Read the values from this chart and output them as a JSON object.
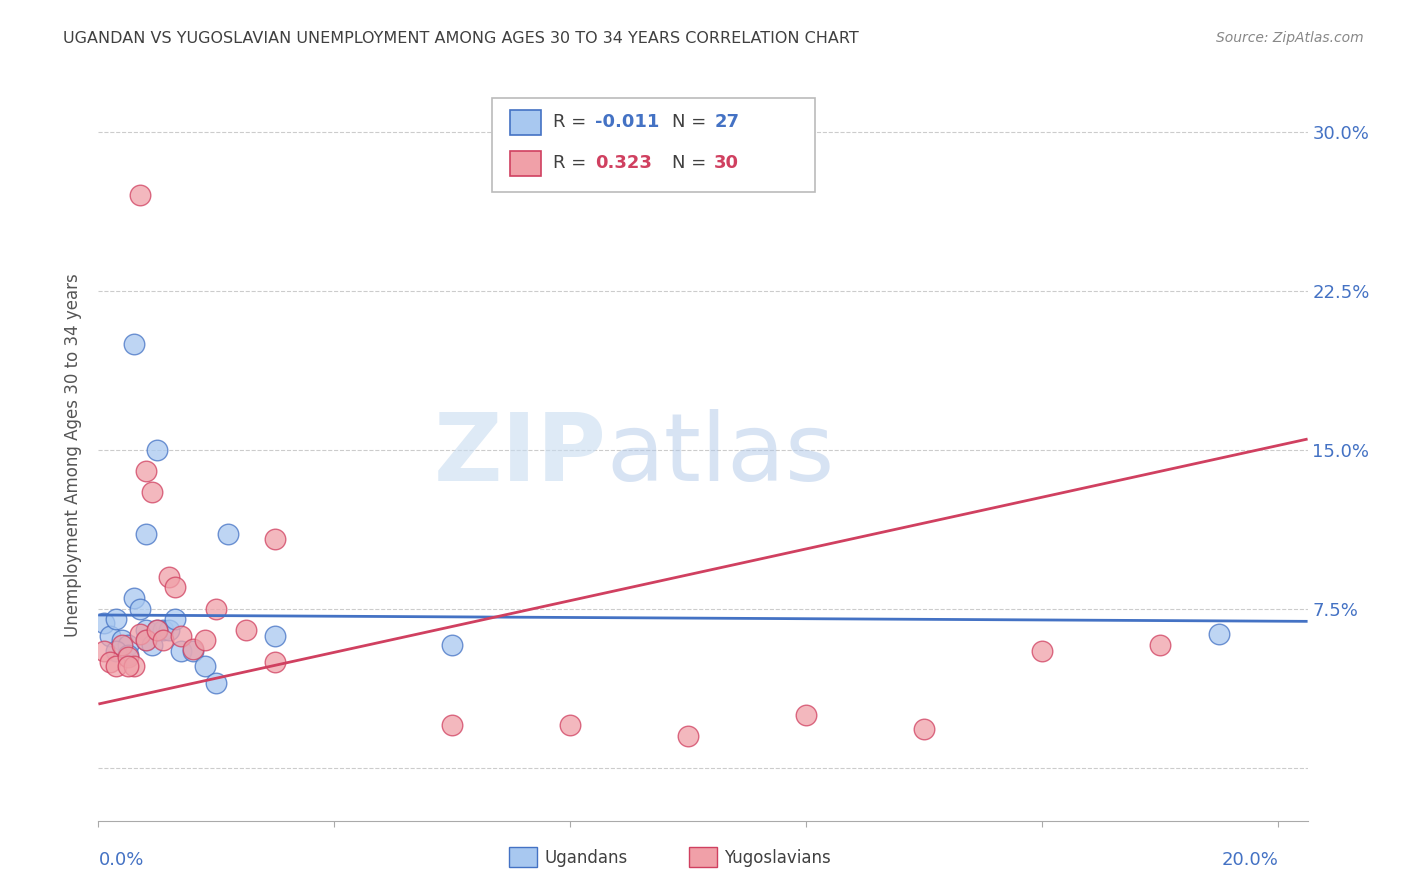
{
  "title": "UGANDAN VS YUGOSLAVIAN UNEMPLOYMENT AMONG AGES 30 TO 34 YEARS CORRELATION CHART",
  "source": "Source: ZipAtlas.com",
  "ylabel": "Unemployment Among Ages 30 to 34 years",
  "watermark_zip": "ZIP",
  "watermark_atlas": "atlas",
  "ugandan_label": "Ugandans",
  "yugoslavian_label": "Yugoslavians",
  "ugandan_R": "-0.011",
  "ugandan_N": "27",
  "yugoslavian_R": "0.323",
  "yugoslavian_N": "30",
  "ugandan_color": "#A8C8F0",
  "yugoslavian_color": "#F0A0A8",
  "ugandan_line_color": "#4472C4",
  "yugoslavian_line_color": "#D04060",
  "background_color": "#FFFFFF",
  "grid_color": "#CCCCCC",
  "title_color": "#404040",
  "xlim": [
    0.0,
    0.205
  ],
  "ylim": [
    -0.025,
    0.32
  ],
  "yticks": [
    0.0,
    0.075,
    0.15,
    0.225,
    0.3
  ],
  "ytick_labels": [
    "",
    "7.5%",
    "15.0%",
    "22.5%",
    "30.0%"
  ],
  "ugandan_x": [
    0.001,
    0.002,
    0.003,
    0.004,
    0.005,
    0.006,
    0.006,
    0.007,
    0.008,
    0.008,
    0.009,
    0.01,
    0.011,
    0.012,
    0.013,
    0.014,
    0.016,
    0.018,
    0.02,
    0.022,
    0.008,
    0.01,
    0.03,
    0.06,
    0.19,
    0.003,
    0.005
  ],
  "ugandan_y": [
    0.068,
    0.062,
    0.07,
    0.06,
    0.058,
    0.2,
    0.08,
    0.075,
    0.065,
    0.06,
    0.058,
    0.15,
    0.065,
    0.065,
    0.07,
    0.055,
    0.055,
    0.048,
    0.04,
    0.11,
    0.11,
    0.065,
    0.062,
    0.058,
    0.063,
    0.055,
    0.053
  ],
  "yugoslavian_x": [
    0.001,
    0.002,
    0.003,
    0.004,
    0.005,
    0.006,
    0.007,
    0.008,
    0.008,
    0.009,
    0.01,
    0.011,
    0.012,
    0.013,
    0.014,
    0.016,
    0.018,
    0.02,
    0.025,
    0.03,
    0.007,
    0.03,
    0.06,
    0.08,
    0.1,
    0.12,
    0.14,
    0.16,
    0.18,
    0.005
  ],
  "yugoslavian_y": [
    0.055,
    0.05,
    0.048,
    0.058,
    0.052,
    0.048,
    0.063,
    0.06,
    0.14,
    0.13,
    0.065,
    0.06,
    0.09,
    0.085,
    0.062,
    0.056,
    0.06,
    0.075,
    0.065,
    0.05,
    0.27,
    0.108,
    0.02,
    0.02,
    0.015,
    0.025,
    0.018,
    0.055,
    0.058,
    0.048
  ],
  "ug_trend_x": [
    0.0,
    0.205
  ],
  "ug_trend_y": [
    0.072,
    0.069
  ],
  "yu_trend_x": [
    0.0,
    0.205
  ],
  "yu_trend_y": [
    0.03,
    0.155
  ]
}
